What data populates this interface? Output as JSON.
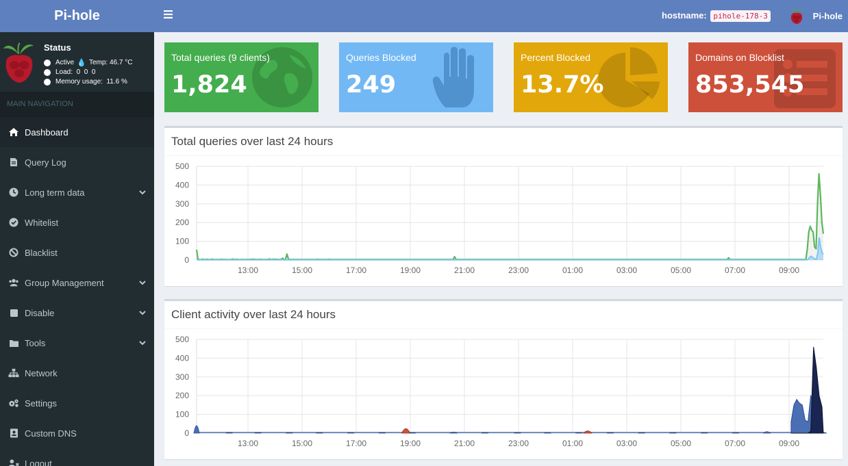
{
  "app": {
    "title": "Pi-hole"
  },
  "status": {
    "title": "Status",
    "active": "Active",
    "temp_label": "Temp: 46.7 °C",
    "load": "Load:  0  0  0",
    "memory": "Memory usage:  11.6 %"
  },
  "nav": {
    "header": "MAIN NAVIGATION",
    "items": [
      {
        "label": "Dashboard",
        "icon": "home-icon",
        "active": true
      },
      {
        "label": "Query Log",
        "icon": "file-icon"
      },
      {
        "label": "Long term data",
        "icon": "clock-icon",
        "chevron": true
      },
      {
        "label": "Whitelist",
        "icon": "check-circle-icon"
      },
      {
        "label": "Blacklist",
        "icon": "ban-icon"
      },
      {
        "label": "Group Management",
        "icon": "users-icon",
        "chevron": true
      },
      {
        "label": "Disable",
        "icon": "stop-icon",
        "chevron": true
      },
      {
        "label": "Tools",
        "icon": "folder-icon",
        "chevron": true
      },
      {
        "label": "Network",
        "icon": "network-icon"
      },
      {
        "label": "Settings",
        "icon": "gears-icon"
      },
      {
        "label": "Custom DNS",
        "icon": "address-book-icon"
      },
      {
        "label": "Logout",
        "icon": "user-logout-icon"
      }
    ]
  },
  "header": {
    "hostname_label": "hostname:",
    "hostname_value": "pihole-178-3",
    "user": "Pi-hole"
  },
  "stats": [
    {
      "label": "Total queries (9 clients)",
      "value": "1,824",
      "color": "#44ad4d"
    },
    {
      "label": "Queries Blocked",
      "value": "249",
      "color": "#72b8f4"
    },
    {
      "label": "Percent Blocked",
      "value": "13.7%",
      "color": "#e2a70a"
    },
    {
      "label": "Domains on Blocklist",
      "value": "853,545",
      "color": "#cd503b"
    }
  ],
  "panels": {
    "queries_title": "Total queries over last 24 hours",
    "clients_title": "Client activity over last 24 hours"
  },
  "chart_data": [
    {
      "type": "area",
      "title": "Total queries over last 24 hours",
      "ylim": [
        0,
        500
      ],
      "y_ticks": [
        0,
        100,
        200,
        300,
        400,
        500
      ],
      "x_ticks": [
        "13:00",
        "15:00",
        "17:00",
        "19:00",
        "21:00",
        "23:00",
        "01:00",
        "03:00",
        "05:00",
        "07:00",
        "09:00"
      ],
      "grid": true,
      "series": [
        {
          "color": "#5cb85c",
          "values": [
            55,
            4,
            3,
            2,
            5,
            3,
            3,
            4,
            3,
            3,
            3,
            5,
            2,
            3,
            3,
            3,
            3,
            4,
            3,
            3,
            3,
            3,
            2,
            3,
            3,
            5,
            3,
            3,
            4,
            2,
            3,
            3,
            3,
            3,
            3,
            3,
            3,
            4,
            3,
            5,
            3,
            3,
            3,
            3,
            4,
            3,
            3,
            3,
            3,
            3,
            6,
            3,
            3,
            5,
            3,
            4,
            3,
            3,
            3,
            10,
            3,
            3,
            32,
            5,
            3,
            3,
            3,
            3,
            3,
            3,
            3,
            3,
            3,
            3,
            3,
            3,
            3,
            3,
            3,
            3,
            3,
            3,
            3,
            4,
            3,
            3,
            3,
            3,
            3,
            3,
            3,
            4,
            3,
            3,
            3,
            3,
            3,
            3,
            3,
            3,
            3,
            3,
            3,
            3,
            3,
            3,
            3,
            3,
            3,
            3,
            3,
            3,
            3,
            3,
            3,
            3,
            3,
            3,
            3,
            3,
            3,
            3,
            3,
            3,
            3,
            3,
            3,
            3,
            3,
            3,
            3,
            3,
            3,
            3,
            3,
            3,
            3,
            3,
            3,
            3,
            3,
            3,
            3,
            3,
            3,
            3,
            3,
            3,
            3,
            3,
            3,
            3,
            3,
            3,
            3,
            3,
            3,
            3,
            3,
            3,
            3,
            3,
            3,
            3,
            3,
            3,
            3,
            3,
            3,
            3,
            3,
            3,
            3,
            3,
            3,
            3,
            3,
            18,
            3,
            3,
            3,
            3,
            3,
            3,
            3,
            3,
            3,
            3,
            3,
            3,
            3,
            3,
            3,
            3,
            3,
            3,
            3,
            3,
            3,
            3,
            3,
            3,
            3,
            3,
            3,
            3,
            3,
            3,
            3,
            3,
            3,
            3,
            3,
            3,
            3,
            3,
            3,
            3,
            3,
            3,
            3,
            3,
            3,
            3,
            3,
            3,
            3,
            3,
            3,
            3,
            3,
            3,
            3,
            3,
            3,
            3,
            3,
            3,
            3,
            3,
            3,
            3,
            3,
            3,
            3,
            3,
            3,
            3,
            3,
            3,
            3,
            3,
            3,
            3,
            3,
            3,
            3,
            3,
            3,
            3,
            3,
            3,
            3,
            3,
            3,
            3,
            3,
            3,
            3,
            3,
            3,
            3,
            3,
            3,
            3,
            3,
            3,
            3,
            3,
            3,
            3,
            3,
            3,
            3,
            3,
            3,
            3,
            3,
            3,
            3,
            3,
            3,
            3,
            3,
            3,
            3,
            3,
            3,
            3,
            3,
            3,
            3,
            3,
            3,
            3,
            3,
            3,
            3,
            3,
            3,
            3,
            3,
            3,
            3,
            3,
            3,
            3,
            3,
            3,
            3,
            3,
            3,
            3,
            3,
            3,
            3,
            3,
            3,
            3,
            3,
            3,
            3,
            3,
            3,
            3,
            3,
            3,
            3,
            3,
            3,
            3,
            3,
            3,
            3,
            3,
            3,
            3,
            3,
            3,
            3,
            3,
            3,
            3,
            3,
            3,
            3,
            3,
            3,
            3,
            3,
            3,
            3,
            3,
            3,
            3,
            12,
            3,
            3,
            3,
            3,
            3,
            3,
            3,
            3,
            3,
            3,
            3,
            3,
            3,
            3,
            3,
            3,
            3,
            3,
            3,
            3,
            3,
            3,
            3,
            3,
            3,
            3,
            3,
            3,
            3,
            3,
            3,
            3,
            3,
            3,
            3,
            3,
            3,
            3,
            3,
            3,
            3,
            3,
            3,
            3,
            3,
            3,
            3,
            3,
            3,
            3,
            3,
            3,
            3,
            60,
            150,
            180,
            160,
            150,
            70,
            60,
            300,
            460,
            350,
            200,
            140
          ]
        },
        {
          "color": "#7fc6f2",
          "values": [
            2,
            1,
            1,
            1,
            1,
            1,
            1,
            1,
            1,
            1,
            1,
            1,
            1,
            1,
            1,
            1,
            1,
            1,
            1,
            1,
            1,
            1,
            1,
            1,
            1,
            1,
            1,
            1,
            1,
            1,
            1,
            1,
            1,
            1,
            1,
            1,
            1,
            1,
            1,
            1,
            1,
            1,
            1,
            1,
            1,
            1,
            1,
            1,
            1,
            1,
            1,
            1,
            1,
            1,
            1,
            1,
            1,
            1,
            1,
            1,
            1,
            1,
            1,
            1,
            1,
            1,
            1,
            1,
            1,
            1,
            1,
            1,
            1,
            1,
            1,
            1,
            1,
            1,
            1,
            1,
            1,
            1,
            1,
            1,
            1,
            1,
            1,
            1,
            1,
            1,
            1,
            1,
            1,
            1,
            1,
            1,
            1,
            1,
            1,
            1,
            1,
            1,
            1,
            1,
            1,
            1,
            1,
            1,
            1,
            1,
            1,
            1,
            1,
            1,
            1,
            1,
            1,
            1,
            1,
            1,
            1,
            1,
            1,
            1,
            1,
            1,
            1,
            1,
            1,
            1,
            1,
            1,
            1,
            1,
            1,
            1,
            1,
            1,
            1,
            1,
            1,
            1,
            1,
            1,
            1,
            1,
            1,
            1,
            1,
            1,
            1,
            1,
            1,
            1,
            1,
            1,
            1,
            1,
            1,
            1,
            1,
            1,
            1,
            1,
            1,
            1,
            1,
            1,
            1,
            1,
            1,
            1,
            1,
            1,
            1,
            1,
            1,
            1,
            1,
            1,
            1,
            1,
            1,
            1,
            1,
            1,
            1,
            1,
            1,
            1,
            1,
            1,
            1,
            1,
            1,
            1,
            1,
            1,
            1,
            1,
            1,
            1,
            1,
            1,
            1,
            1,
            1,
            1,
            1,
            1,
            1,
            1,
            1,
            1,
            1,
            1,
            1,
            1,
            1,
            1,
            1,
            1,
            1,
            1,
            1,
            1,
            1,
            1,
            1,
            1,
            1,
            1,
            1,
            1,
            1,
            1,
            1,
            1,
            1,
            1,
            1,
            1,
            1,
            1,
            1,
            1,
            1,
            1,
            1,
            1,
            1,
            1,
            1,
            1,
            1,
            1,
            1,
            1,
            1,
            1,
            1,
            1,
            1,
            1,
            1,
            1,
            1,
            1,
            1,
            1,
            1,
            1,
            1,
            1,
            1,
            1,
            1,
            1,
            1,
            1,
            1,
            1,
            1,
            1,
            1,
            1,
            1,
            1,
            1,
            1,
            1,
            1,
            1,
            1,
            1,
            1,
            1,
            1,
            1,
            1,
            1,
            1,
            1,
            1,
            1,
            1,
            1,
            1,
            1,
            1,
            1,
            1,
            1,
            1,
            1,
            1,
            1,
            1,
            1,
            1,
            1,
            1,
            1,
            1,
            1,
            1,
            1,
            1,
            1,
            1,
            1,
            1,
            1,
            1,
            1,
            1,
            1,
            1,
            1,
            1,
            1,
            1,
            1,
            1,
            1,
            1,
            1,
            1,
            1,
            1,
            1,
            1,
            1,
            1,
            1,
            1,
            1,
            1,
            1,
            1,
            1,
            1,
            1,
            1,
            1,
            1,
            1,
            1,
            1,
            1,
            1,
            1,
            1,
            1,
            1,
            1,
            1,
            1,
            1,
            1,
            1,
            1,
            1,
            1,
            1,
            1,
            1,
            1,
            1,
            1,
            1,
            1,
            1,
            1,
            1,
            1,
            1,
            1,
            1,
            1,
            1,
            1,
            1,
            1,
            1,
            1,
            1,
            1,
            1,
            1,
            1,
            1,
            1,
            1,
            1,
            1,
            1,
            1,
            1,
            1,
            1,
            1,
            1,
            1,
            1,
            1,
            1,
            1,
            1,
            1,
            1,
            1,
            1,
            1,
            1,
            1,
            1,
            1,
            1,
            1,
            1,
            1,
            1,
            1,
            1,
            1,
            1,
            1,
            5,
            15,
            20,
            15,
            10,
            5,
            5,
            40,
            120,
            70,
            40,
            30
          ]
        }
      ]
    },
    {
      "type": "area",
      "title": "Client activity over last 24 hours",
      "ylim": [
        0,
        500
      ],
      "y_ticks": [
        0,
        100,
        200,
        300,
        400,
        500
      ],
      "x_ticks": [
        "13:00",
        "15:00",
        "17:00",
        "19:00",
        "21:00",
        "23:00",
        "01:00",
        "03:00",
        "05:00",
        "07:00",
        "09:00"
      ],
      "grid": true,
      "series": [
        {
          "color": "#4b6fb5",
          "peaks": [
            [
              0,
              50
            ],
            [
              26,
              6
            ],
            [
              49,
              5
            ],
            [
              74,
              5
            ],
            [
              98,
              5
            ],
            [
              123,
              5
            ],
            [
              148,
              5
            ],
            [
              172,
              5
            ],
            [
              205,
              8
            ],
            [
              230,
              5
            ],
            [
              256,
              5
            ],
            [
              280,
              5
            ],
            [
              305,
              5
            ],
            [
              330,
              5
            ],
            [
              355,
              5
            ],
            [
              380,
              5
            ],
            [
              405,
              5
            ],
            [
              430,
              5
            ],
            [
              455,
              10
            ],
            [
              480,
              5
            ],
            [
              500,
              5
            ]
          ],
          "tail": [
            60,
            150,
            180,
            160,
            150,
            70,
            60,
            200,
            170,
            60,
            40,
            30
          ]
        },
        {
          "color": "#d0523b",
          "peaks": [
            [
              167,
              30
            ],
            [
              312,
              15
            ]
          ]
        },
        {
          "color": "#1a2651",
          "tail": [
            0,
            0,
            0,
            0,
            0,
            0,
            0,
            10,
            460,
            350,
            200,
            140
          ]
        }
      ]
    }
  ]
}
